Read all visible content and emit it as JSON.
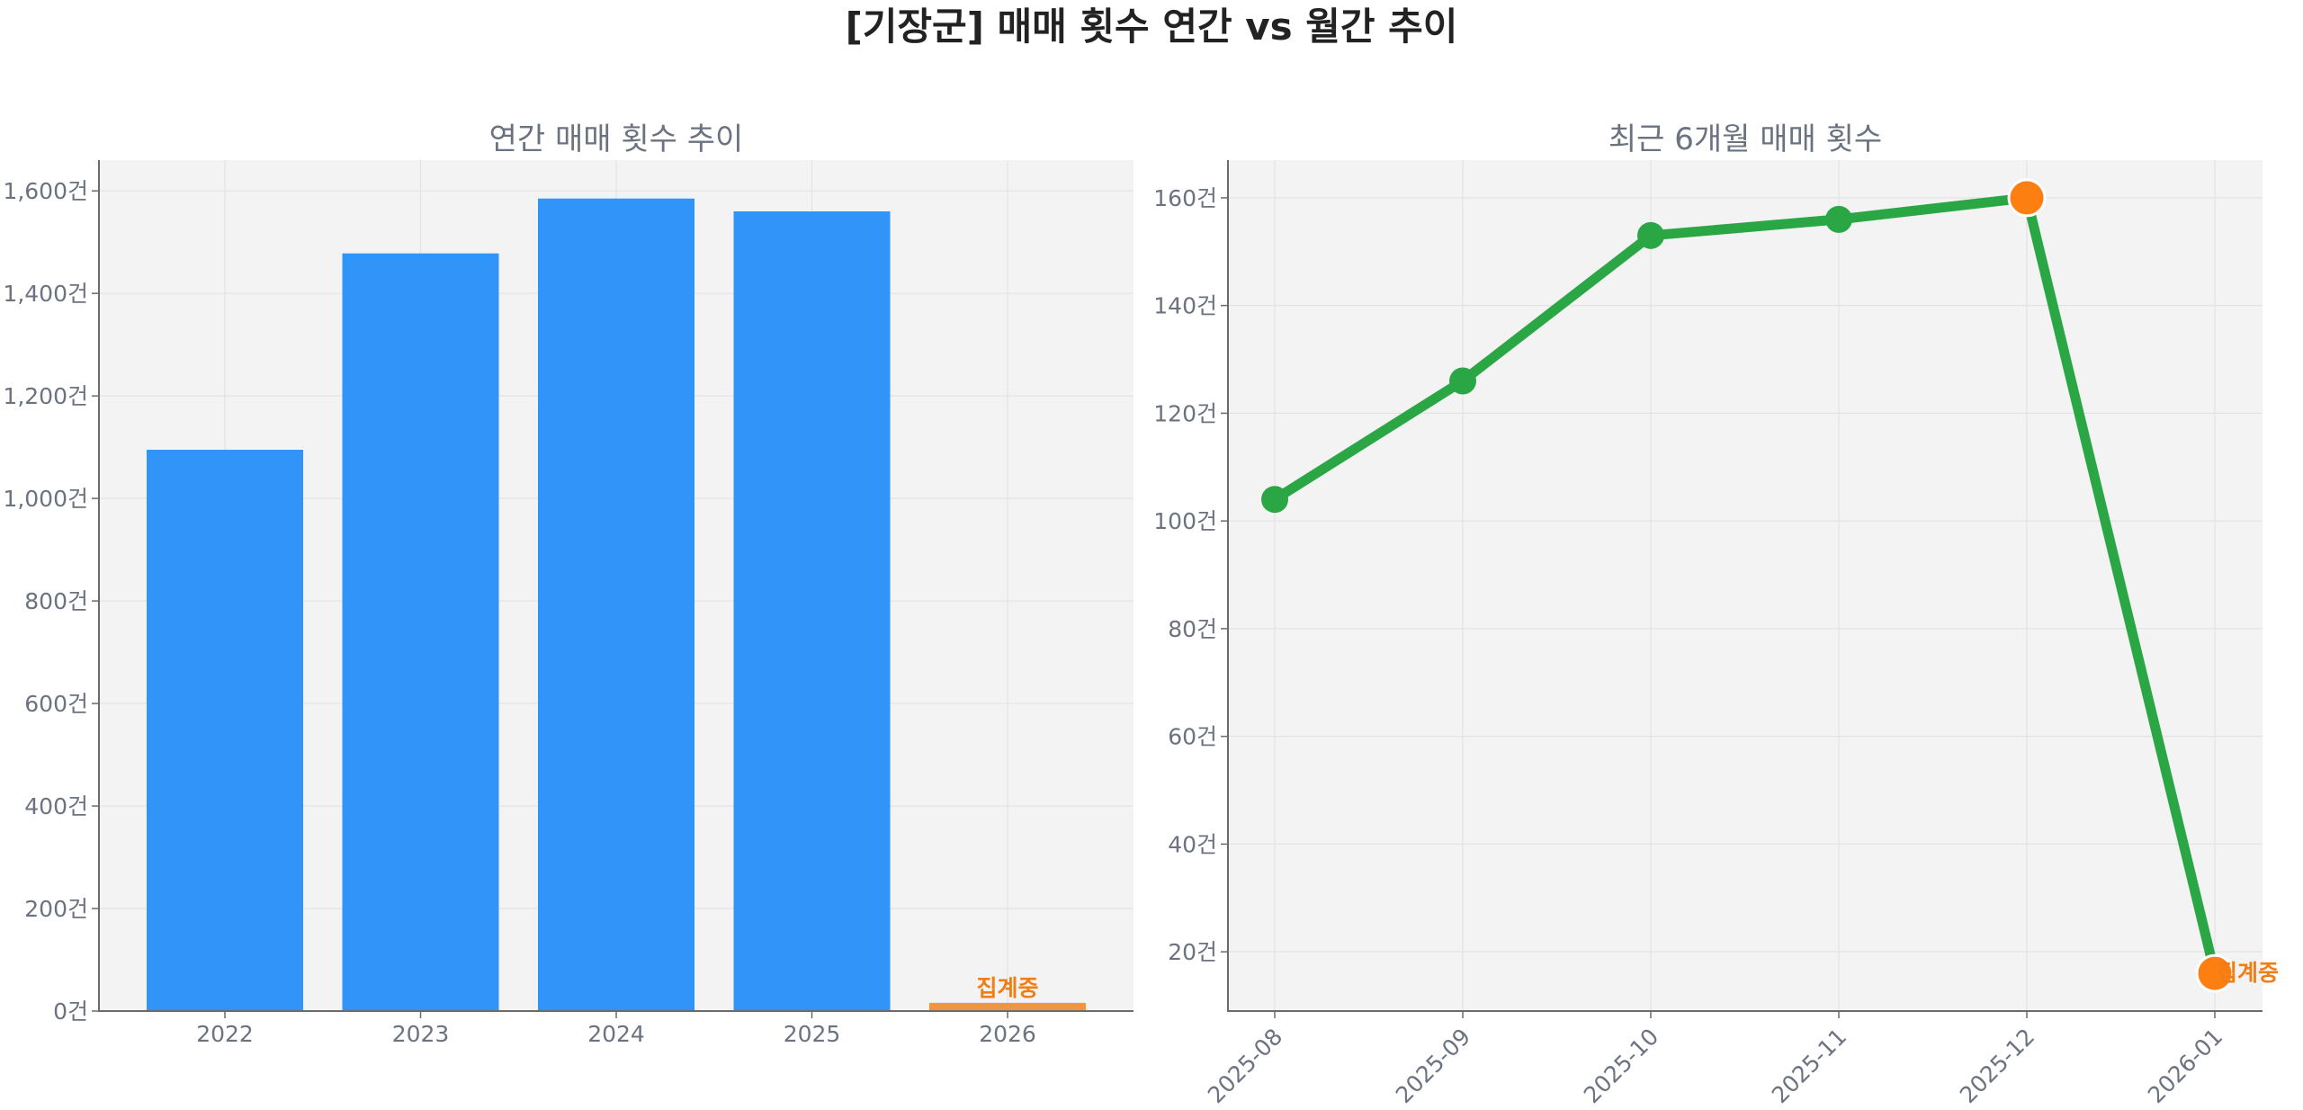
{
  "figure": {
    "title": "[기장군] 매매 횟수 연간 vs 월간 추이"
  },
  "chart_data": [
    {
      "type": "bar",
      "title": "연간 매매 횟수 추이",
      "xlabel": "",
      "ylabel": "",
      "categories": [
        "2022",
        "2023",
        "2024",
        "2025",
        "2026"
      ],
      "values": [
        1095,
        1478,
        1585,
        1560,
        16
      ],
      "ylim": [
        0,
        1660
      ],
      "yticks": [
        0,
        200,
        400,
        600,
        800,
        1000,
        1200,
        1400,
        1600
      ],
      "ytick_labels": [
        "0건",
        "200건",
        "400건",
        "600건",
        "800건",
        "1,000건",
        "1,200건",
        "1,400건",
        "1,600건"
      ],
      "bar_colors": [
        "#3194f9",
        "#3194f9",
        "#3194f9",
        "#3194f9",
        "#f39540"
      ],
      "annotation": {
        "category": "2026",
        "text": "집계중",
        "color": "#f07e16"
      },
      "grid": true
    },
    {
      "type": "line",
      "title": "최근 6개월 매매 횟수",
      "xlabel": "",
      "ylabel": "",
      "categories": [
        "2025-08",
        "2025-09",
        "2025-10",
        "2025-11",
        "2025-12",
        "2026-01"
      ],
      "values": [
        104,
        126,
        153,
        156,
        160,
        16
      ],
      "ylim": [
        9,
        167
      ],
      "yticks": [
        20,
        40,
        60,
        80,
        100,
        120,
        140,
        160
      ],
      "ytick_labels": [
        "20건",
        "40건",
        "60건",
        "80건",
        "100건",
        "120건",
        "140건",
        "160건"
      ],
      "line_color": "#2aa744",
      "highlight_color": "#fd7f12",
      "highlight_points": [
        "2025-12",
        "2026-01"
      ],
      "annotation": {
        "category": "2026-01",
        "text": "집계중",
        "color": "#f07e16"
      },
      "grid": true
    }
  ]
}
